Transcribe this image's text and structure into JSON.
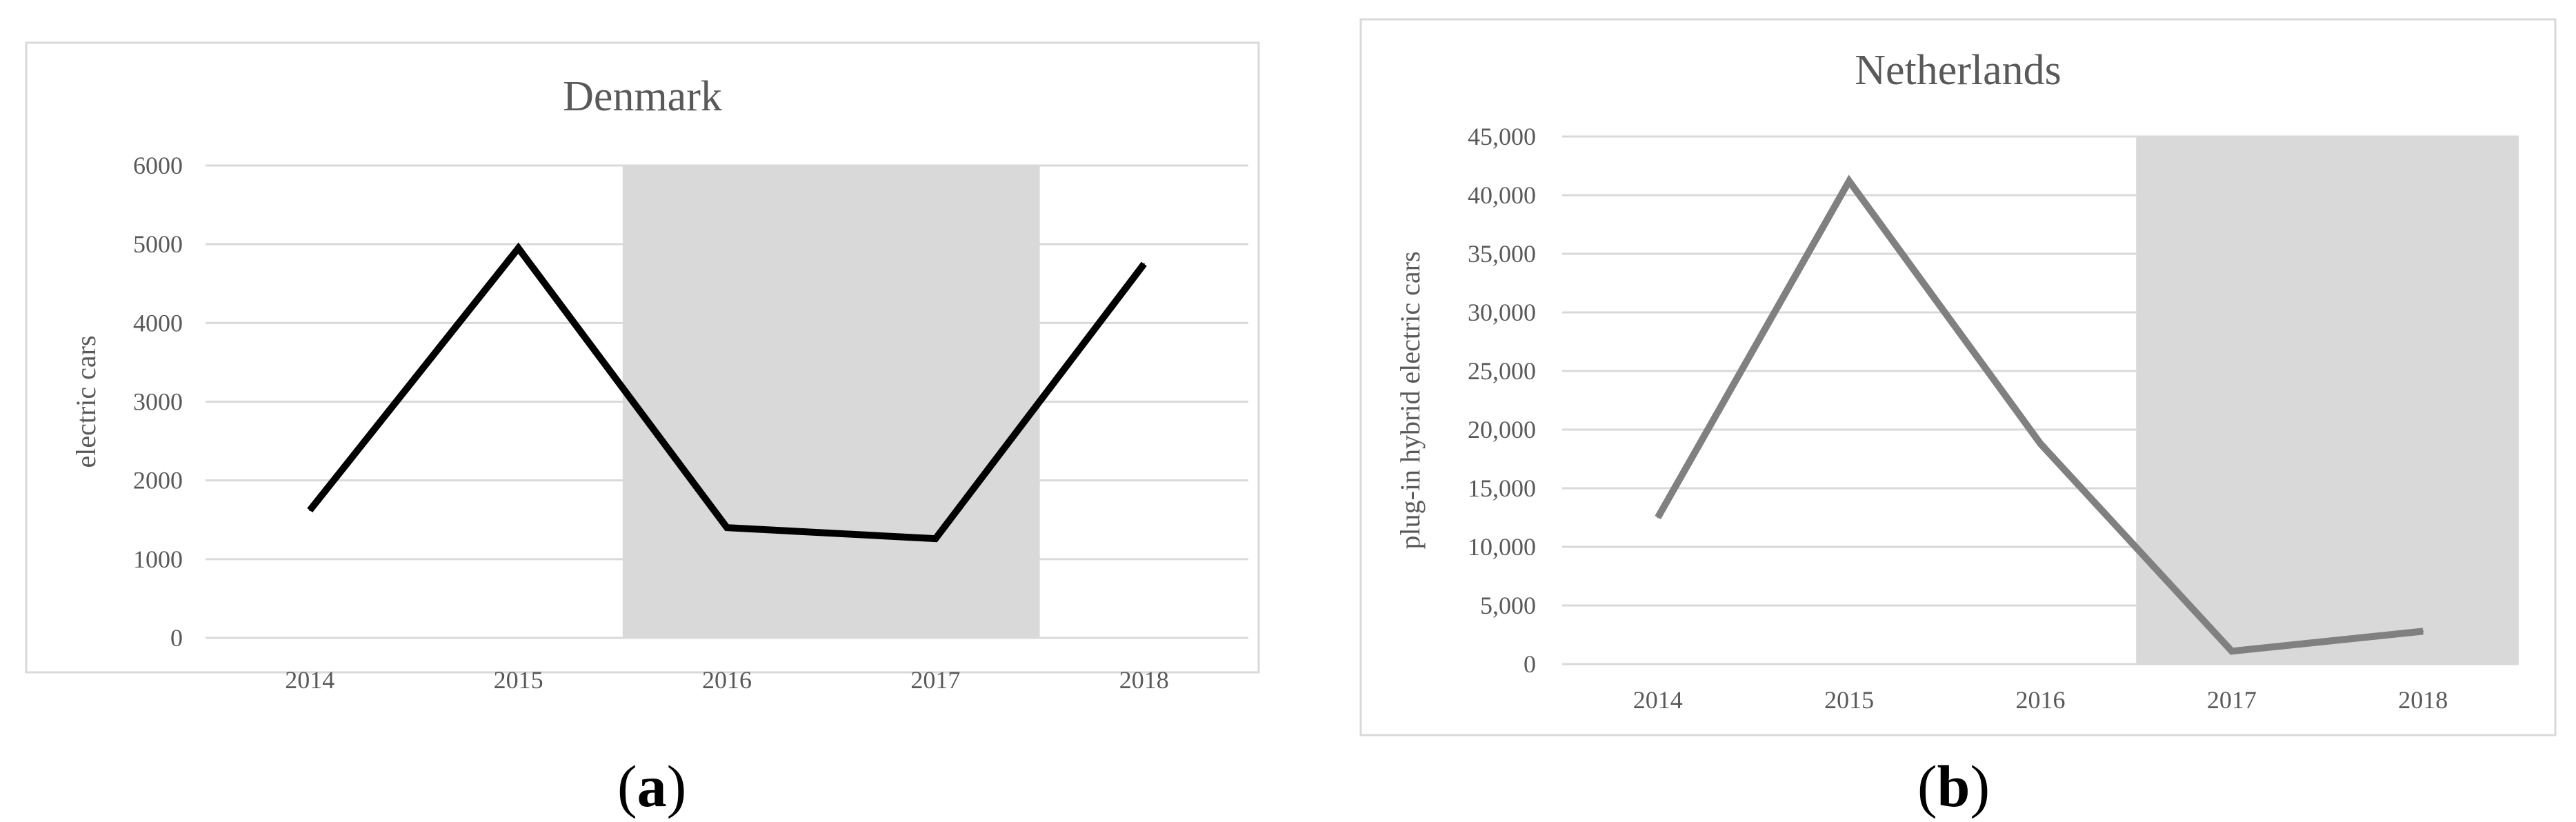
{
  "chart_data": [
    {
      "type": "line",
      "title": "Denmark",
      "ylabel": "electric cars",
      "xlabel": "",
      "categories": [
        "2014",
        "2015",
        "2016",
        "2017",
        "2018"
      ],
      "series": [
        {
          "values": [
            1620,
            4950,
            1400,
            1260,
            4750
          ],
          "color": "#000000"
        }
      ],
      "ylim": [
        0,
        6000
      ],
      "yticks": [
        0,
        1000,
        2000,
        3000,
        4000,
        5000,
        6000
      ],
      "ytick_labels": [
        "0",
        "1000",
        "2000",
        "3000",
        "4000",
        "5000",
        "6000"
      ],
      "shaded_categories": [
        "2016",
        "2017"
      ],
      "grid": true,
      "caption_letter": "a"
    },
    {
      "type": "line",
      "title": "Netherlands",
      "ylabel": "plug-in hybrid electric cars",
      "xlabel": "",
      "categories": [
        "2014",
        "2015",
        "2016",
        "2017",
        "2018"
      ],
      "series": [
        {
          "values": [
            12500,
            41200,
            18800,
            1100,
            2800
          ],
          "color": "#808080"
        }
      ],
      "ylim": [
        0,
        45000
      ],
      "yticks": [
        0,
        5000,
        10000,
        15000,
        20000,
        25000,
        30000,
        35000,
        40000,
        45000
      ],
      "ytick_labels": [
        "0",
        "5,000",
        "10,000",
        "15,000",
        "20,000",
        "25,000",
        "30,000",
        "35,000",
        "40,000",
        "45,000"
      ],
      "shaded_categories": [
        "2017",
        "2018"
      ],
      "grid": true,
      "caption_letter": "b"
    }
  ],
  "colors": {
    "shade": "#d9d9d9",
    "grid": "#d9d9d9",
    "frame": "#d9d9d9",
    "tick_text": "#595959",
    "title_text": "#595959"
  }
}
